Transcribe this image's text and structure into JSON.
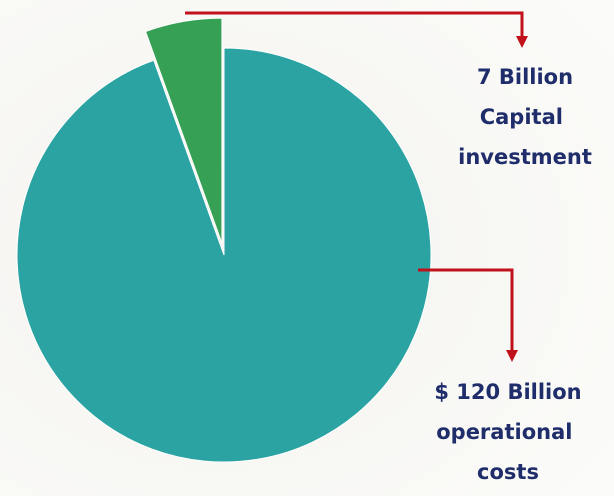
{
  "chart_data": {
    "type": "pie",
    "categories": [
      "Capital investment",
      "operational costs"
    ],
    "values": [
      7,
      120
    ],
    "value_labels": [
      "7 Billion",
      "$ 120 Billion"
    ],
    "colors": [
      "#36a055",
      "#2ba3a3"
    ]
  }
}
